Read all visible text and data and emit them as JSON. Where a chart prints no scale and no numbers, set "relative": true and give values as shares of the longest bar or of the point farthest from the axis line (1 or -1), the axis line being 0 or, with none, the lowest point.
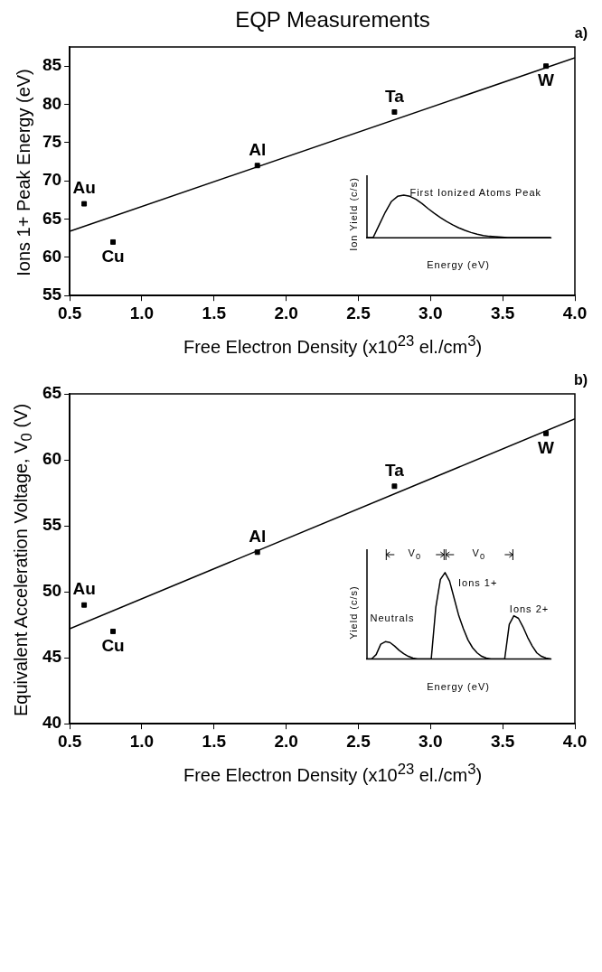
{
  "chart_data": [
    {
      "type": "scatter",
      "title": "EQP Measurements",
      "xlabel": "Free Electron Density (x10$^{23}$ el./cm$^{3}$)",
      "ylabel": "Ions 1+ Peak Energy (eV)",
      "xlim": [
        0.5,
        4.0
      ],
      "xticks": [
        0.5,
        {
          "value": 1,
          "label": "1.0"
        },
        1.5,
        {
          "value": 2,
          "label": "2.0"
        },
        2.5,
        {
          "value": 3,
          "label": "3.0"
        },
        3.5,
        {
          "value": 4,
          "label": "4.0"
        }
      ],
      "ylim": [
        55,
        87.5
      ],
      "yticks": [
        55,
        60,
        65,
        70,
        75,
        80,
        85
      ],
      "grid": false,
      "legend": false,
      "series": [
        {
          "type": "scatter",
          "color": "#000000",
          "marker": "square",
          "x": [
            0.6,
            0.8,
            1.8,
            2.75,
            3.8
          ],
          "values": [
            67,
            62,
            72,
            79,
            85
          ]
        },
        {
          "type": "line",
          "color": "#000000",
          "marker": "none",
          "line_style": "solid",
          "x": [
            0.5,
            4.0
          ],
          "values": [
            63.4,
            86.1
          ]
        }
      ],
      "annotations": [
        "a)",
        {
          "text": "Au",
          "x": 0.6,
          "y": 67
        },
        {
          "text": "Cu",
          "x": 0.8,
          "y": 62
        },
        {
          "text": "Al",
          "x": 1.8,
          "y": 72
        },
        {
          "text": "Ta",
          "x": 2.75,
          "y": 79
        },
        {
          "text": "W",
          "x": 3.8,
          "y": 85
        }
      ]
    },
    {
      "type": "line",
      "relative": true,
      "xlabel": "Energy (eV)",
      "ylabel": "Ion Yield (c/s)",
      "legend": false,
      "grid": false,
      "categories": [
        null,
        null,
        null,
        null,
        null,
        null,
        null,
        null,
        null,
        null,
        null,
        null,
        null,
        null,
        null,
        null,
        null,
        null,
        null,
        null,
        null,
        null,
        null,
        null,
        null,
        null,
        null,
        null,
        null,
        null,
        null
      ],
      "series": [
        {
          "color": "#000000",
          "marker": "none",
          "line_style": "solid",
          "values": [
            0,
            0,
            0.3,
            0.6,
            0.85,
            0.97,
            1,
            0.97,
            0.9,
            0.8,
            0.68,
            0.57,
            0.47,
            0.38,
            0.3,
            0.23,
            0.17,
            0.12,
            0.08,
            0.05,
            0.03,
            0.02,
            0.01,
            0,
            0,
            0,
            0,
            0,
            0,
            0,
            0
          ]
        }
      ],
      "annotations": [
        "First Ionized Atoms Peak"
      ]
    },
    {
      "type": "scatter",
      "xlabel": "Free Electron Density (x10$^{23}$ el./cm$^{3}$)",
      "ylabel": "Equivalent Acceleration Voltage, V$_{0}$ (V)",
      "xlim": [
        0.5,
        4.0
      ],
      "xticks": [
        0.5,
        {
          "value": 1,
          "label": "1.0"
        },
        1.5,
        {
          "value": 2,
          "label": "2.0"
        },
        2.5,
        {
          "value": 3,
          "label": "3.0"
        },
        3.5,
        {
          "value": 4,
          "label": "4.0"
        }
      ],
      "ylim": [
        40,
        65
      ],
      "yticks": [
        40,
        45,
        50,
        55,
        60,
        65
      ],
      "grid": false,
      "legend": false,
      "series": [
        {
          "type": "scatter",
          "color": "#000000",
          "marker": "square",
          "x": [
            0.6,
            0.8,
            1.8,
            2.75,
            3.8
          ],
          "values": [
            49,
            47,
            53,
            58,
            62
          ]
        },
        {
          "type": "line",
          "color": "#000000",
          "marker": "none",
          "line_style": "solid",
          "x": [
            0.5,
            4.0
          ],
          "values": [
            47.2,
            63.1
          ]
        }
      ],
      "annotations": [
        "b)",
        {
          "text": "Au",
          "x": 0.6,
          "y": 49
        },
        {
          "text": "Cu",
          "x": 0.8,
          "y": 47
        },
        {
          "text": "Al",
          "x": 1.8,
          "y": 53
        },
        {
          "text": "Ta",
          "x": 2.75,
          "y": 58
        },
        {
          "text": "W",
          "x": 3.8,
          "y": 62
        }
      ]
    },
    {
      "type": "line",
      "relative": true,
      "xlabel": "Energy (eV)",
      "ylabel": "Yield (c/s)",
      "legend": false,
      "grid": false,
      "categories": [
        null,
        null,
        null,
        null,
        null,
        null,
        null,
        null,
        null,
        null,
        null,
        null,
        null,
        null,
        null,
        null,
        null,
        null,
        null,
        null,
        null,
        null,
        null,
        null,
        null,
        null,
        null,
        null,
        null,
        null,
        null,
        null,
        null,
        null,
        null,
        null,
        null,
        null,
        null,
        null,
        null
      ],
      "series": [
        {
          "color": "#000000",
          "marker": "none",
          "line_style": "solid",
          "values": [
            0,
            0,
            0.05,
            0.17,
            0.2,
            0.19,
            0.15,
            0.1,
            0.06,
            0.03,
            0.01,
            0,
            0,
            0,
            0,
            0.6,
            0.92,
            1,
            0.9,
            0.7,
            0.5,
            0.35,
            0.22,
            0.13,
            0.07,
            0.03,
            0.01,
            0,
            0,
            0,
            0,
            0.4,
            0.5,
            0.47,
            0.37,
            0.25,
            0.15,
            0.07,
            0.03,
            0.01,
            0
          ]
        }
      ],
      "annotations": [
        "V$_{0}$",
        "V$_{0}$",
        "Ions 1+",
        "Ions 2+",
        "Neutrals"
      ]
    }
  ]
}
